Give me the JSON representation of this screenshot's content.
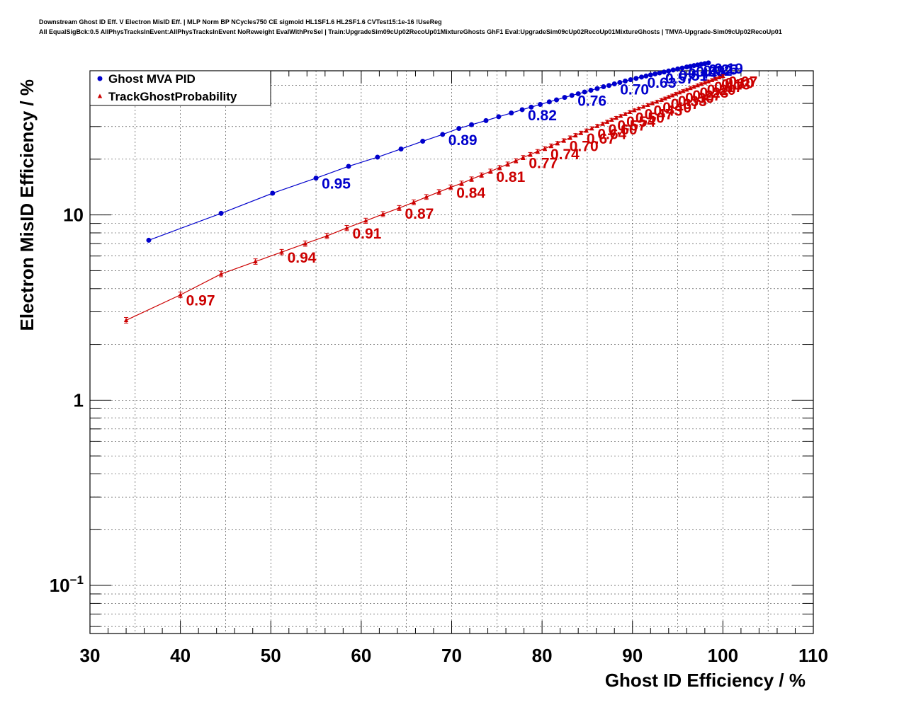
{
  "header": {
    "title_line1": "Downstream Ghost ID Eff. V Electron MisID Eff. | MLP Norm BP NCycles750 CE sigmoid HL1SF1.6 HL2SF1.6 CVTest15:1e-16 !UseReg",
    "title_line2": "All EqualSigBck:0.5 AllPhysTracksInEvent:AllPhysTracksInEvent NoReweight EvalWithPreSel | Train:UpgradeSim09cUp02RecoUp01MixtureGhosts GhF1 Eval:UpgradeSim09cUp02RecoUp01MixtureGhosts | TMVA-Upgrade-Sim09cUp02RecoUp01"
  },
  "chart_data": {
    "type": "line",
    "xlabel": "Ghost ID Efficiency / %",
    "ylabel": "Electron MisID Efficiency / %",
    "xlim": [
      30,
      110
    ],
    "ylim": [
      0.055,
      60
    ],
    "ylog": true,
    "grid": true,
    "legend_position": "top-left",
    "xticks": [
      30,
      40,
      50,
      60,
      70,
      80,
      90,
      100,
      110
    ],
    "xtick_labels": [
      "30",
      "40",
      "50",
      "60",
      "70",
      "80",
      "90",
      "100",
      "110"
    ],
    "yticks": [
      0.1,
      1,
      10
    ],
    "ytick_labels": [
      "10^-1",
      "1",
      "10"
    ],
    "series": [
      {
        "name": "Ghost MVA PID",
        "color": "#0000cc",
        "marker": "circle",
        "x": [
          36.5,
          44.5,
          50.2,
          55.0,
          58.6,
          61.8,
          64.4,
          66.8,
          69.0,
          70.8,
          72.2,
          73.8,
          75.2,
          76.6,
          77.8,
          78.8,
          79.8,
          80.8,
          81.6,
          82.5,
          83.3,
          84.0,
          84.7,
          85.4,
          86.1,
          86.8,
          87.4,
          88.0,
          88.6,
          89.2,
          89.8,
          90.4,
          91.0,
          91.5,
          92.0,
          92.5,
          93.0,
          93.5,
          94.0,
          94.5,
          95.0,
          95.5,
          96.0,
          96.4,
          96.8,
          97.2,
          97.6,
          98.0,
          98.4
        ],
        "y": [
          7.3,
          10.2,
          13.1,
          15.8,
          18.3,
          20.5,
          22.7,
          25.0,
          27.2,
          29.3,
          30.7,
          32.3,
          33.9,
          35.5,
          37.0,
          38.2,
          39.5,
          40.8,
          41.8,
          43.1,
          44.2,
          45.1,
          46.1,
          47.1,
          48.1,
          49.2,
          50.0,
          51.0,
          51.9,
          52.8,
          53.7,
          54.6,
          55.5,
          56.2,
          57.0,
          57.7,
          58.4,
          59.1,
          59.9,
          60.6,
          61.4,
          62.1,
          62.9,
          63.4,
          64.0,
          64.5,
          65.1,
          65.6,
          66.2
        ],
        "point_labels": [
          {
            "text": "0.95",
            "x": 55.0,
            "y": 15.8
          },
          {
            "text": "0.89",
            "x": 69.0,
            "y": 27.2
          },
          {
            "text": "0.82",
            "x": 77.8,
            "y": 37.0
          },
          {
            "text": "0.76",
            "x": 83.3,
            "y": 44.2
          },
          {
            "text": "0.70",
            "x": 88.0,
            "y": 51.0
          },
          {
            "text": "0.63",
            "x": 91.0,
            "y": 55.5
          },
          {
            "text": "0.57",
            "x": 93.0,
            "y": 58.4
          },
          {
            "text": "0.51",
            "x": 94.5,
            "y": 60.6
          },
          {
            "text": "0.44",
            "x": 95.5,
            "y": 62.1
          },
          {
            "text": "0.38",
            "x": 96.4,
            "y": 63.4
          },
          {
            "text": "0.32",
            "x": 97.2,
            "y": 64.5
          },
          {
            "text": "0.25",
            "x": 97.8,
            "y": 65.3
          },
          {
            "text": "0.19",
            "x": 98.4,
            "y": 66.2
          }
        ]
      },
      {
        "name": "TrackGhostProbability",
        "color": "#cc0000",
        "marker": "triangle",
        "error_bars": true,
        "x": [
          34.0,
          40.0,
          44.5,
          48.3,
          51.2,
          53.8,
          56.2,
          58.4,
          60.5,
          62.4,
          64.2,
          65.8,
          67.2,
          68.6,
          69.9,
          71.1,
          72.2,
          73.3,
          74.3,
          75.3,
          76.2,
          77.1,
          77.9,
          78.7,
          79.5,
          80.3,
          81.0,
          81.7,
          82.4,
          83.1,
          83.7,
          84.3,
          84.9,
          85.5,
          86.1,
          86.7,
          87.2,
          87.7,
          88.2,
          88.7,
          89.2,
          89.7,
          90.2,
          90.7,
          91.2,
          91.7,
          92.2,
          92.7,
          93.2,
          93.6,
          94.0,
          94.4,
          94.8,
          95.2,
          95.6,
          96.0,
          96.4,
          96.8,
          97.2,
          97.6,
          98.0,
          98.4,
          98.8,
          99.2,
          99.6,
          100.0
        ],
        "y": [
          2.7,
          3.7,
          4.8,
          5.6,
          6.3,
          7.0,
          7.7,
          8.5,
          9.3,
          10.1,
          10.9,
          11.7,
          12.5,
          13.3,
          14.1,
          14.8,
          15.6,
          16.4,
          17.2,
          18.0,
          18.8,
          19.6,
          20.4,
          21.2,
          22.0,
          22.8,
          23.6,
          24.4,
          25.2,
          26.1,
          26.9,
          27.7,
          28.5,
          29.3,
          30.2,
          31.0,
          31.8,
          32.6,
          33.4,
          34.2,
          35.0,
          35.9,
          36.7,
          37.5,
          38.3,
          39.2,
          40.0,
          40.8,
          41.7,
          42.5,
          43.3,
          44.1,
          45.0,
          45.8,
          46.6,
          47.4,
          48.3,
          49.1,
          50.0,
          50.8,
          51.7,
          52.5,
          53.4,
          54.3,
          55.2,
          56.1
        ],
        "point_labels": [
          {
            "text": "0.97",
            "x": 40.0,
            "y": 3.7
          },
          {
            "text": "0.94",
            "x": 51.2,
            "y": 6.3
          },
          {
            "text": "0.91",
            "x": 58.4,
            "y": 8.5
          },
          {
            "text": "0.87",
            "x": 64.2,
            "y": 10.9
          },
          {
            "text": "0.84",
            "x": 69.9,
            "y": 14.1
          },
          {
            "text": "0.81",
            "x": 74.3,
            "y": 17.2
          },
          {
            "text": "0.77",
            "x": 77.9,
            "y": 20.4
          },
          {
            "text": "0.74",
            "x": 80.3,
            "y": 22.8
          },
          {
            "text": "0.70",
            "x": 82.4,
            "y": 25.2
          },
          {
            "text": "0.67",
            "x": 84.3,
            "y": 27.7
          },
          {
            "text": "0.64",
            "x": 85.5,
            "y": 29.3
          },
          {
            "text": "0.60",
            "x": 86.7,
            "y": 31.0
          },
          {
            "text": "0.57",
            "x": 87.7,
            "y": 32.6
          },
          {
            "text": "0.54",
            "x": 88.7,
            "y": 34.2
          },
          {
            "text": "0.50",
            "x": 89.7,
            "y": 35.9
          },
          {
            "text": "0.47",
            "x": 90.7,
            "y": 37.5
          },
          {
            "text": "0.43",
            "x": 91.7,
            "y": 39.2
          },
          {
            "text": "0.40",
            "x": 92.7,
            "y": 40.8
          },
          {
            "text": "0.37",
            "x": 93.6,
            "y": 42.5
          },
          {
            "text": "0.33",
            "x": 94.4,
            "y": 44.1
          },
          {
            "text": "0.30",
            "x": 95.2,
            "y": 45.8
          },
          {
            "text": "0.27",
            "x": 96.0,
            "y": 47.4
          },
          {
            "text": "0.23",
            "x": 96.8,
            "y": 49.1
          },
          {
            "text": "0.20",
            "x": 97.6,
            "y": 50.8
          },
          {
            "text": "0.17",
            "x": 98.4,
            "y": 52.5
          },
          {
            "text": "0.13",
            "x": 99.2,
            "y": 54.3
          },
          {
            "text": "0.10",
            "x": 99.6,
            "y": 55.2
          },
          {
            "text": "0.07",
            "x": 100.0,
            "y": 56.1
          }
        ]
      }
    ]
  }
}
